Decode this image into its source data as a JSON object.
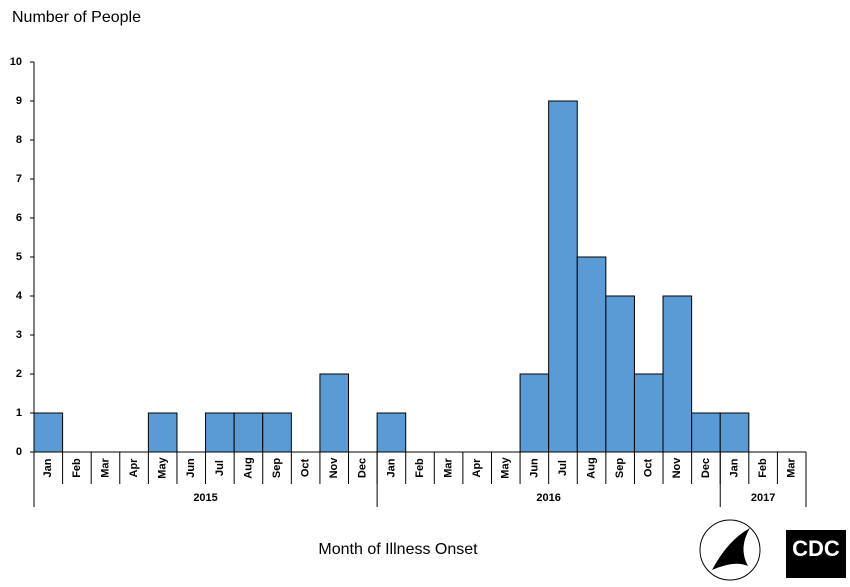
{
  "chart_data": {
    "type": "bar",
    "title": "Number of People",
    "x_label": "Month of Illness Onset",
    "groups": [
      {
        "label": "2015",
        "categories": [
          "Jan",
          "Feb",
          "Mar",
          "Apr",
          "May",
          "Jun",
          "Jul",
          "Aug",
          "Sep",
          "Oct",
          "Nov",
          "Dec"
        ]
      },
      {
        "label": "2016",
        "categories": [
          "Jan",
          "Feb",
          "Mar",
          "Apr",
          "May",
          "Jun",
          "Jul",
          "Aug",
          "Sep",
          "Oct",
          "Nov",
          "Dec"
        ]
      },
      {
        "label": "2017",
        "categories": [
          "Jan",
          "Feb",
          "Mar"
        ]
      }
    ],
    "values": [
      1,
      0,
      0,
      0,
      1,
      0,
      1,
      1,
      1,
      0,
      2,
      0,
      1,
      0,
      0,
      0,
      0,
      2,
      9,
      5,
      4,
      2,
      4,
      1,
      1,
      0,
      0
    ],
    "color": "#5b9bd5",
    "ylim": [
      0,
      10
    ],
    "yticks": [
      0,
      1,
      2,
      3,
      4,
      5,
      6,
      7,
      8,
      9,
      10
    ],
    "grid": false,
    "logo_text": "CDC"
  }
}
